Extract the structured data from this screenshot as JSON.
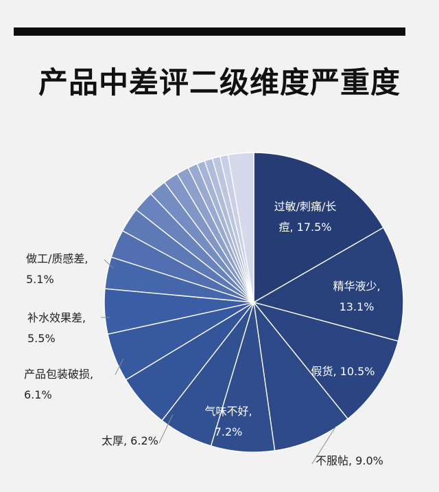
{
  "title": "产品中差评二级维度严重度",
  "chart_data": {
    "type": "pie",
    "title": "产品中差评二级维度严重度",
    "start_angle_deg": 0,
    "direction": "clockwise",
    "slices": [
      {
        "label": "过敏/刺痛/长痘",
        "lines": [
          "过敏/刺痛/长",
          "痘, 17.5%"
        ],
        "value": 17.5
      },
      {
        "label": "精华液少",
        "lines": [
          "精华液少,",
          "13.1%"
        ],
        "value": 13.1
      },
      {
        "label": "假货",
        "lines": [
          "假货, 10.5%"
        ],
        "value": 10.5
      },
      {
        "label": "不服帖",
        "lines": [
          "不服帖, 9.0%"
        ],
        "value": 9.0
      },
      {
        "label": "气味不好",
        "lines": [
          "气味不好,",
          "7.2%"
        ],
        "value": 7.2
      },
      {
        "label": "太厚",
        "lines": [
          "太厚, 6.2%"
        ],
        "value": 6.2
      },
      {
        "label": "产品包装破损",
        "lines": [
          "产品包装破损,",
          "6.1%"
        ],
        "value": 6.1
      },
      {
        "label": "补水效果差",
        "lines": [
          "补水效果差,",
          "5.5%"
        ],
        "value": 5.5
      },
      {
        "label": "做工/质感差",
        "lines": [
          "做工/质感差,",
          "5.1%"
        ],
        "value": 5.1
      },
      {
        "label": "",
        "lines": [],
        "value": 3.6
      },
      {
        "label": "",
        "lines": [],
        "value": 3.2
      },
      {
        "label": "",
        "lines": [],
        "value": 2.8
      },
      {
        "label": "",
        "lines": [],
        "value": 2.4
      },
      {
        "label": "",
        "lines": [],
        "value": 2.0
      },
      {
        "label": "",
        "lines": [],
        "value": 1.7
      },
      {
        "label": "",
        "lines": [],
        "value": 1.4
      },
      {
        "label": "",
        "lines": [],
        "value": 1.1
      },
      {
        "label": "",
        "lines": [],
        "value": 0.9
      },
      {
        "label": "",
        "lines": [],
        "value": 0.9
      },
      {
        "label": "",
        "lines": [],
        "value": 0.9
      },
      {
        "label": "",
        "lines": [],
        "value": 0.9
      },
      {
        "label": "",
        "lines": [],
        "value": 2.9
      }
    ],
    "colors": {
      "dark": "#253d74",
      "mid": "#3a5da6",
      "light": "#d4d9ec",
      "label_light": "#ffffff",
      "label_dark": "#222222",
      "edge": "#ffffff",
      "leader": "#8c8c8c"
    },
    "legend": "none"
  }
}
